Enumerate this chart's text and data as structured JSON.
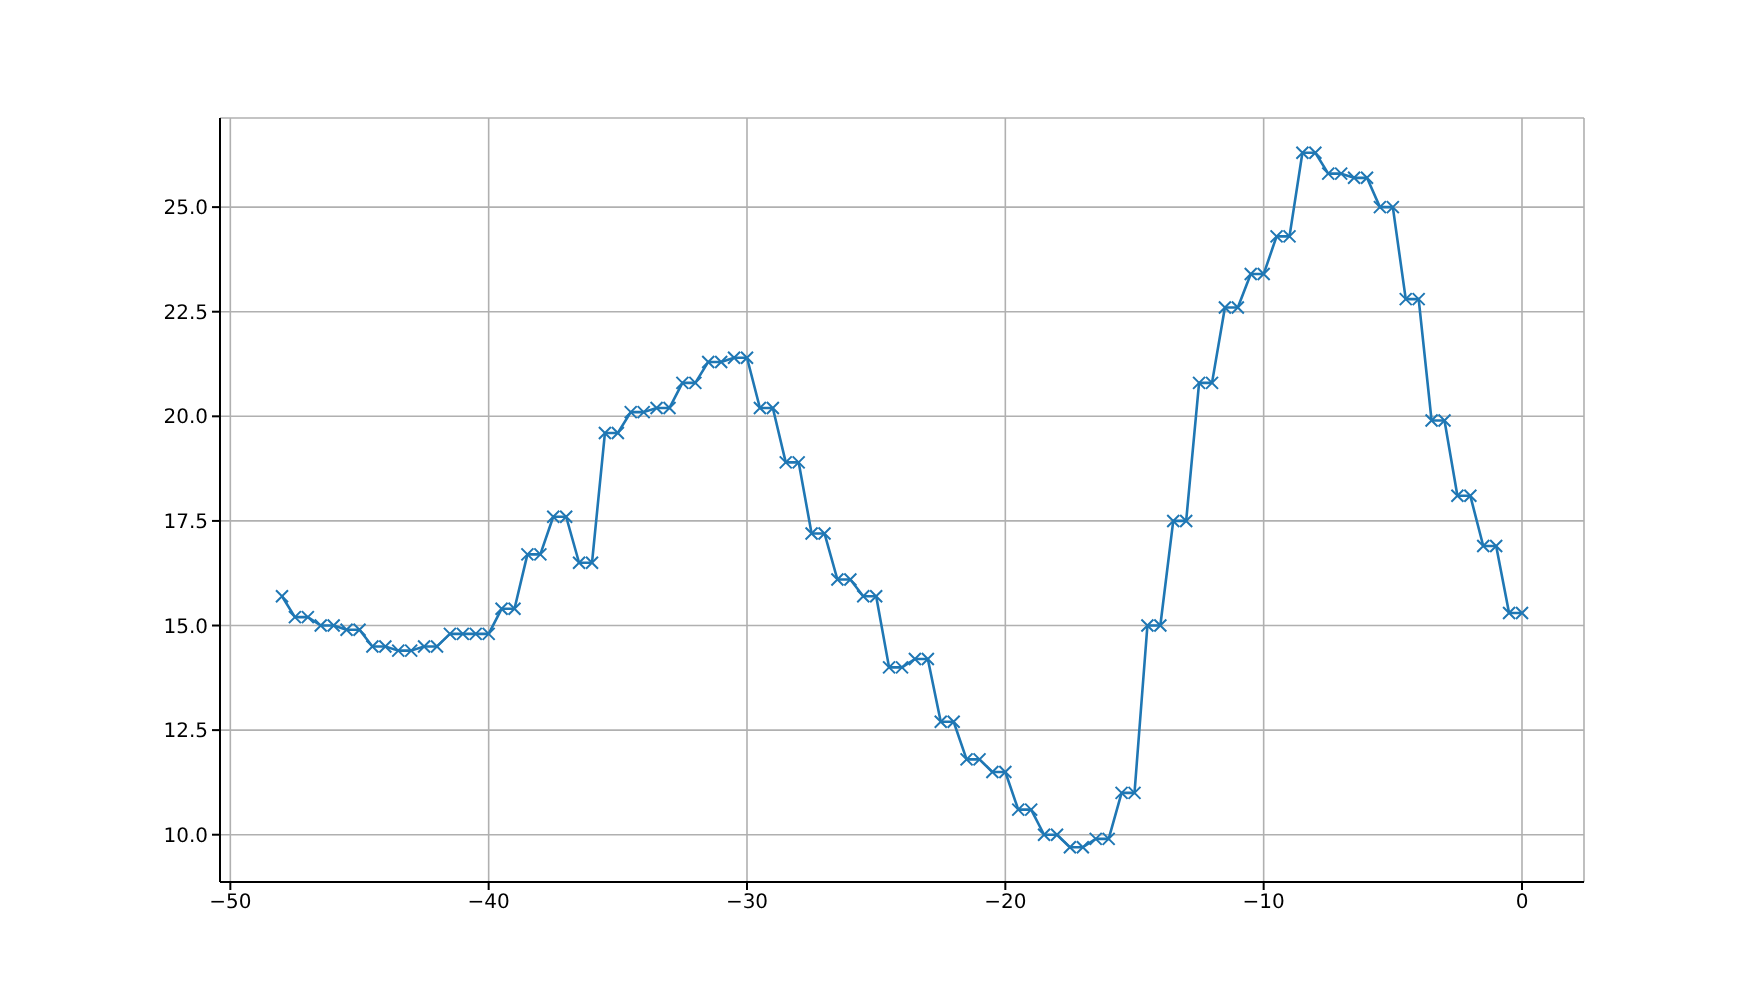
{
  "chart_data": {
    "type": "line",
    "x": [
      -48,
      -47.5,
      -47,
      -46.5,
      -46,
      -45.5,
      -45,
      -44.5,
      -44,
      -43.5,
      -43,
      -42.5,
      -42,
      -41.5,
      -41,
      -40.5,
      -40,
      -39.5,
      -39,
      -38.5,
      -38,
      -37.5,
      -37,
      -36.5,
      -36,
      -35.5,
      -35,
      -34.5,
      -34,
      -33.5,
      -33,
      -32.5,
      -32,
      -31.5,
      -31,
      -30.5,
      -30,
      -29.5,
      -29,
      -28.5,
      -28,
      -27.5,
      -27,
      -26.5,
      -26,
      -25.5,
      -25,
      -24.5,
      -24,
      -23.5,
      -23,
      -22.5,
      -22,
      -21.5,
      -21,
      -20.5,
      -20,
      -19.5,
      -19,
      -18.5,
      -18,
      -17.5,
      -17,
      -16.5,
      -16,
      -15.5,
      -15,
      -14.5,
      -14,
      -13.5,
      -13,
      -12.5,
      -12,
      -11.5,
      -11,
      -10.5,
      -10,
      -9.5,
      -9,
      -8.5,
      -8,
      -7.5,
      -7,
      -6.5,
      -6,
      -5.5,
      -5,
      -4.5,
      -4,
      -3.5,
      -3,
      -2.5,
      -2,
      -1.5,
      -1,
      -0.5,
      0
    ],
    "series": [
      {
        "color": "#1f77b4",
        "values": [
          15.7,
          15.2,
          15.2,
          15.0,
          15.0,
          14.9,
          14.9,
          14.5,
          14.5,
          14.4,
          14.4,
          14.5,
          14.5,
          14.8,
          14.8,
          14.8,
          14.8,
          15.4,
          15.4,
          16.7,
          16.7,
          17.6,
          17.6,
          16.5,
          16.5,
          19.6,
          19.6,
          20.1,
          20.1,
          20.2,
          20.2,
          20.8,
          20.8,
          21.3,
          21.3,
          21.4,
          21.4,
          20.2,
          20.2,
          18.9,
          18.9,
          17.2,
          17.2,
          16.1,
          16.1,
          15.7,
          15.7,
          14.0,
          14.0,
          14.2,
          14.2,
          12.7,
          12.7,
          11.8,
          11.8,
          11.5,
          11.5,
          10.6,
          10.6,
          10.0,
          10.0,
          9.7,
          9.7,
          9.9,
          9.9,
          11.0,
          11.0,
          15.0,
          15.0,
          17.5,
          17.5,
          20.8,
          20.8,
          22.6,
          22.6,
          23.4,
          23.4,
          24.3,
          24.3,
          26.3,
          26.3,
          25.8,
          25.8,
          25.7,
          25.7,
          25.0,
          25.0,
          22.8,
          22.8,
          19.9,
          19.9,
          18.1,
          18.1,
          16.9,
          16.9,
          15.3,
          15.3
        ]
      }
    ],
    "xlim": [
      -50.4,
      2.4
    ],
    "xticks": [
      {
        "value": -50,
        "label": "−50"
      },
      {
        "value": -40,
        "label": "−40"
      },
      {
        "value": -30,
        "label": "−30"
      },
      {
        "value": -20,
        "label": "−20"
      },
      {
        "value": -10,
        "label": "−10"
      },
      0
    ],
    "ylim": [
      8.87,
      27.13
    ],
    "yticks": [
      {
        "value": 10,
        "label": "10.0"
      },
      {
        "value": 12.5,
        "label": "12.5"
      },
      {
        "value": 15,
        "label": "15.0"
      },
      {
        "value": 17.5,
        "label": "17.5"
      },
      {
        "value": 20,
        "label": "20.0"
      },
      {
        "value": 22.5,
        "label": "22.5"
      },
      {
        "value": 25,
        "label": "25.0"
      }
    ],
    "grid": true,
    "marker": "cross",
    "line_style": "solid"
  }
}
